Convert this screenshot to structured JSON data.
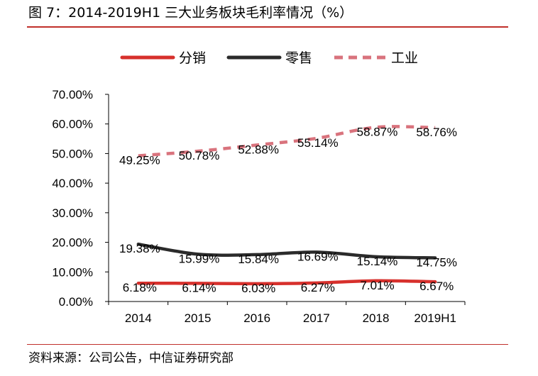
{
  "figure": {
    "title": "图 7：2014-2019H1 三大业务板块毛利率情况（%）",
    "source": "资料来源：公司公告，中信证券研究部"
  },
  "chart_data": {
    "type": "line",
    "title": "",
    "xlabel": "",
    "ylabel": "",
    "categories": [
      "2014",
      "2015",
      "2016",
      "2017",
      "2018",
      "2019H1"
    ],
    "ylim": [
      0,
      70
    ],
    "yticks": [
      "0.00%",
      "10.00%",
      "20.00%",
      "30.00%",
      "40.00%",
      "50.00%",
      "60.00%",
      "70.00%"
    ],
    "grid": false,
    "legend_position": "top",
    "series": [
      {
        "name": "分销",
        "color": "#d7302c",
        "dash": "solid",
        "values": [
          6.18,
          6.14,
          6.03,
          6.27,
          7.01,
          6.67
        ],
        "labels": [
          "6.18%",
          "6.14%",
          "6.03%",
          "6.27%",
          "7.01%",
          "6.67%"
        ]
      },
      {
        "name": "零售",
        "color": "#2b2b2b",
        "dash": "solid",
        "values": [
          19.38,
          15.99,
          15.84,
          16.69,
          15.14,
          14.75
        ],
        "labels": [
          "19.38%",
          "15.99%",
          "15.84%",
          "16.69%",
          "15.14%",
          "14.75%"
        ]
      },
      {
        "name": "工业",
        "color": "#d9737d",
        "dash": "dashed",
        "values": [
          49.25,
          50.78,
          52.88,
          55.14,
          58.87,
          58.76
        ],
        "labels": [
          "49.25%",
          "50.78%",
          "52.88%",
          "55.14%",
          "58.87%",
          "58.76%"
        ]
      }
    ]
  }
}
